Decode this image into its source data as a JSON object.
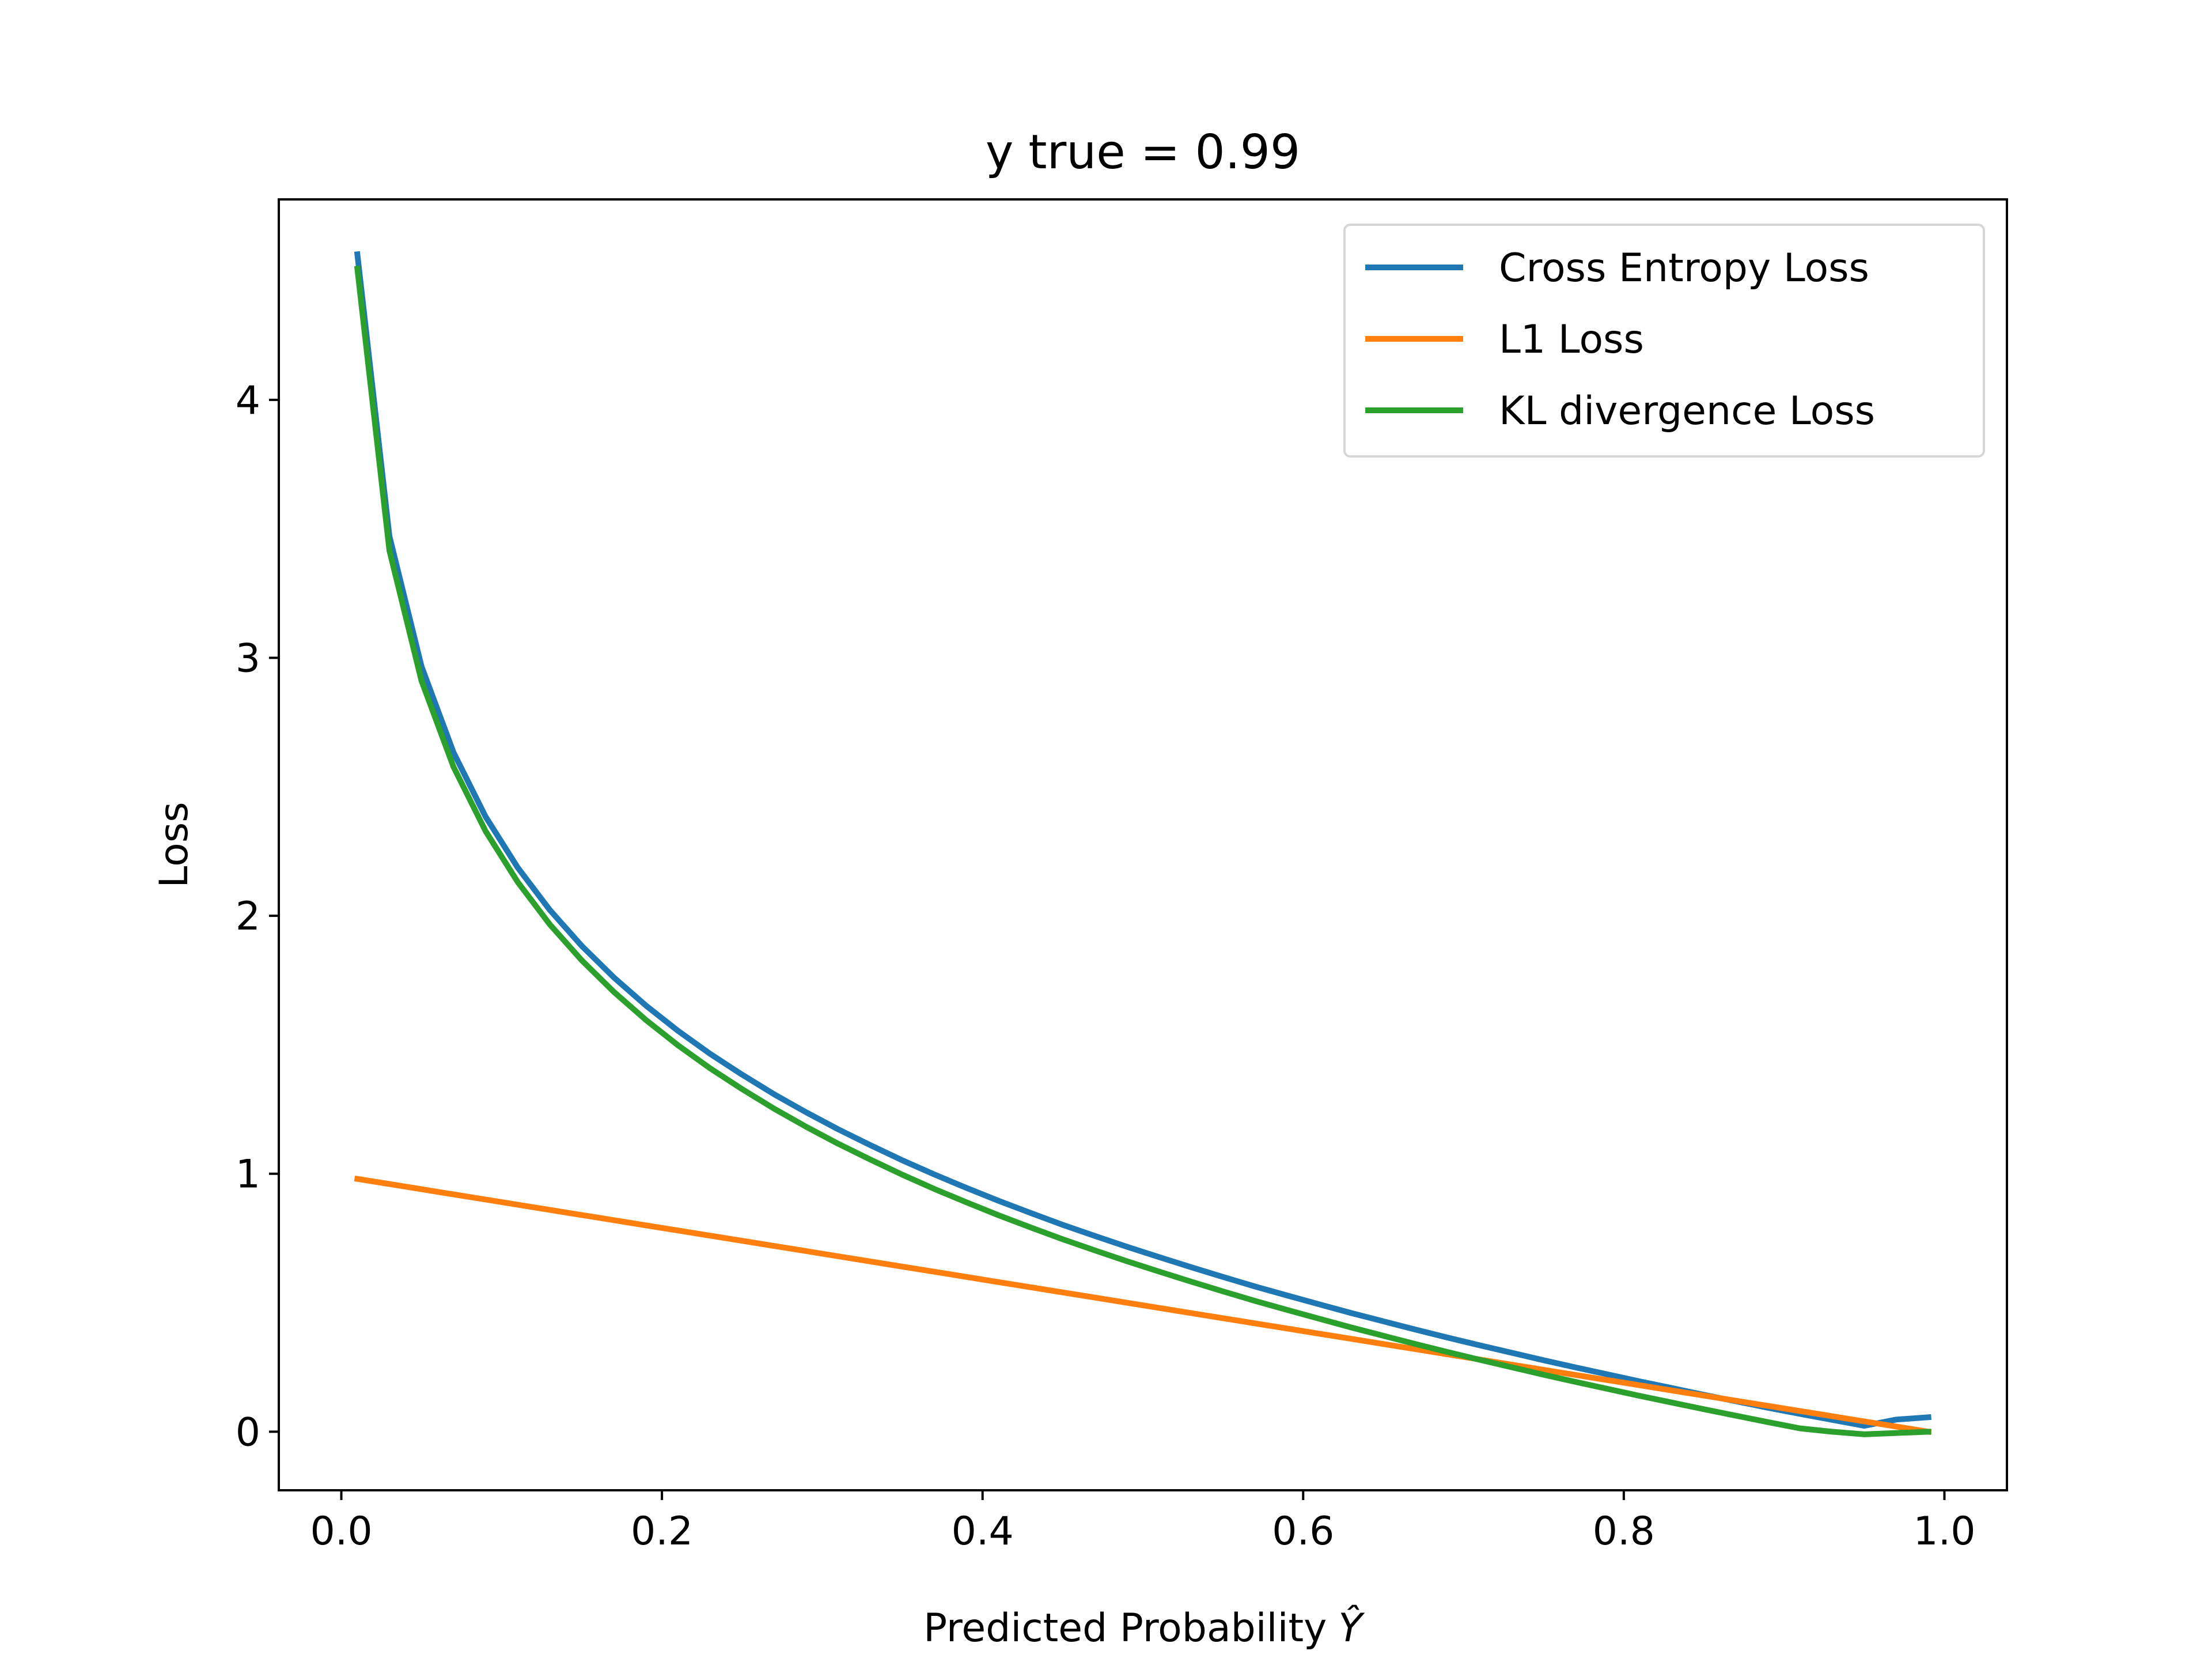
{
  "chart_data": {
    "type": "line",
    "title": "y true = 0.99",
    "xlabel": "Predicted Probability",
    "xlabel_symbol": "Ŷ",
    "ylabel": "Loss",
    "xlim": [
      -0.039,
      1.039
    ],
    "ylim": [
      -0.227,
      4.777
    ],
    "xticks": [
      0.0,
      0.2,
      0.4,
      0.6,
      0.8,
      1.0
    ],
    "xtick_labels": [
      "0.0",
      "0.2",
      "0.4",
      "0.6",
      "0.8",
      "1.0"
    ],
    "yticks": [
      0,
      1,
      2,
      3,
      4
    ],
    "ytick_labels": [
      "0",
      "1",
      "2",
      "3",
      "4"
    ],
    "grid": false,
    "legend_position": "top-right",
    "x": [
      0.01,
      0.03,
      0.05,
      0.07,
      0.09,
      0.11,
      0.13,
      0.15,
      0.17,
      0.19,
      0.21,
      0.23,
      0.25,
      0.27,
      0.29,
      0.31,
      0.33,
      0.35,
      0.37,
      0.39,
      0.41,
      0.43,
      0.45,
      0.47,
      0.49,
      0.51,
      0.53,
      0.55,
      0.57,
      0.59,
      0.61,
      0.63,
      0.65,
      0.67,
      0.69,
      0.71,
      0.73,
      0.75,
      0.77,
      0.79,
      0.81,
      0.83,
      0.85,
      0.87,
      0.89,
      0.91,
      0.93,
      0.95,
      0.97,
      0.99
    ],
    "series": [
      {
        "name": "Cross Entropy Loss",
        "color": "#1f77b4",
        "values": [
          4.564,
          3.472,
          2.967,
          2.633,
          2.384,
          2.187,
          2.023,
          1.883,
          1.761,
          1.652,
          1.554,
          1.465,
          1.384,
          1.308,
          1.238,
          1.172,
          1.111,
          1.052,
          0.997,
          0.945,
          0.895,
          0.848,
          0.802,
          0.759,
          0.717,
          0.677,
          0.638,
          0.6,
          0.563,
          0.528,
          0.494,
          0.46,
          0.428,
          0.396,
          0.365,
          0.335,
          0.306,
          0.277,
          0.249,
          0.222,
          0.195,
          0.169,
          0.143,
          0.118,
          0.093,
          0.069,
          0.046,
          0.023,
          0.047,
          0.056
        ]
      },
      {
        "name": "L1 Loss",
        "color": "#ff7f0e",
        "values": [
          0.98,
          0.96,
          0.94,
          0.92,
          0.9,
          0.88,
          0.86,
          0.84,
          0.82,
          0.8,
          0.78,
          0.76,
          0.74,
          0.72,
          0.7,
          0.68,
          0.66,
          0.64,
          0.62,
          0.6,
          0.58,
          0.56,
          0.54,
          0.52,
          0.5,
          0.48,
          0.46,
          0.44,
          0.42,
          0.4,
          0.38,
          0.36,
          0.34,
          0.32,
          0.3,
          0.28,
          0.26,
          0.24,
          0.22,
          0.2,
          0.18,
          0.16,
          0.14,
          0.12,
          0.1,
          0.08,
          0.06,
          0.04,
          0.02,
          0.0
        ]
      },
      {
        "name": "KL divergence Loss",
        "color": "#2ca02c",
        "values": [
          4.508,
          3.416,
          2.911,
          2.577,
          2.328,
          2.131,
          1.967,
          1.827,
          1.705,
          1.596,
          1.498,
          1.409,
          1.328,
          1.252,
          1.182,
          1.116,
          1.055,
          0.996,
          0.941,
          0.889,
          0.839,
          0.792,
          0.746,
          0.703,
          0.661,
          0.621,
          0.582,
          0.544,
          0.507,
          0.472,
          0.438,
          0.404,
          0.372,
          0.34,
          0.309,
          0.279,
          0.25,
          0.221,
          0.193,
          0.166,
          0.139,
          0.113,
          0.087,
          0.062,
          0.037,
          0.013,
          0.0,
          -0.01,
          -0.005,
          0.0
        ]
      }
    ]
  }
}
